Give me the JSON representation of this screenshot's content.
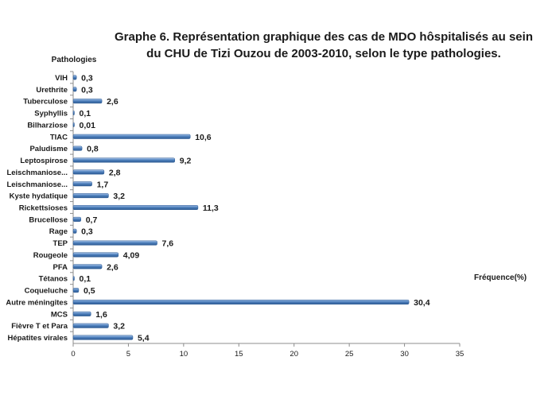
{
  "chart_data": {
    "type": "bar",
    "orientation": "horizontal",
    "title_line1": "Graphe 6. Représentation graphique des cas de MDO hôspitalisés au sein",
    "title_line2": "du CHU de Tizi Ouzou de 2003-2010,  selon le type  pathologies.",
    "ylabel": "Pathologies",
    "xlabel": "Fréquence(%)",
    "xlim": [
      0,
      35
    ],
    "xticks": [
      "0",
      "5",
      "10",
      "15",
      "20",
      "25",
      "30",
      "35"
    ],
    "grid": false,
    "legend": "none",
    "bar_color": "#4f81bd",
    "categories": [
      "VIH",
      "Urethrite",
      "Tuberculose",
      "Syphyllis",
      "Bilharziose",
      "TIAC",
      "Paludisme",
      "Leptospirose",
      "Leischmaniose...",
      "Leischmaniose...",
      "Kyste hydatique",
      "Rickettsioses",
      "Brucellose",
      "Rage",
      "TEP",
      "Rougeole",
      "PFA",
      "Tétanos",
      "Coqueluche",
      "Autre méningites",
      "MCS",
      "Fièvre T et Para",
      "Hépatites virales"
    ],
    "values": [
      0.3,
      0.3,
      2.6,
      0.1,
      0.01,
      10.6,
      0.8,
      9.2,
      2.8,
      1.7,
      3.2,
      11.3,
      0.7,
      0.3,
      7.6,
      4.09,
      2.6,
      0.1,
      0.5,
      30.4,
      1.6,
      3.2,
      5.4
    ],
    "value_labels": [
      "0,3",
      "0,3",
      "2,6",
      "0,1",
      "0,01",
      "10,6",
      "0,8",
      "9,2",
      "2,8",
      "1,7",
      "3,2",
      "11,3",
      "0,7",
      "0,3",
      "7,6",
      "4,09",
      "2,6",
      "0,1",
      "0,5",
      "30,4",
      "1,6",
      "3,2",
      "5,4"
    ]
  }
}
